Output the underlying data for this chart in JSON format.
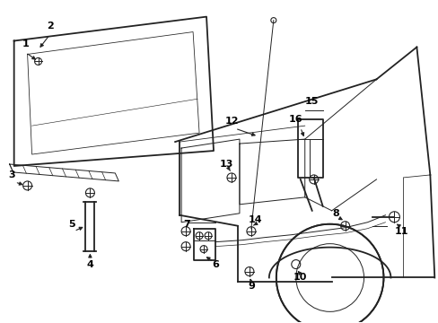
{
  "bg_color": "#ffffff",
  "line_color": "#222222",
  "label_color": "#000000",
  "lw_main": 1.3,
  "lw_thin": 0.7,
  "label_fs": 8.0
}
